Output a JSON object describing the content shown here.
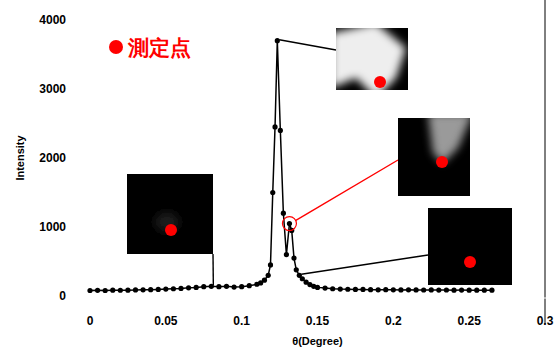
{
  "chart_data": {
    "type": "line",
    "x_label": "θ(Degree)",
    "y_label": "Intensity",
    "annotation": "測定点",
    "color": "#000000",
    "marker": "circle",
    "line_style": "solid",
    "grid": false,
    "x": [
      0,
      0.005,
      0.01,
      0.015,
      0.02,
      0.025,
      0.03,
      0.035,
      0.04,
      0.045,
      0.05,
      0.055,
      0.06,
      0.065,
      0.07,
      0.075,
      0.08,
      0.085,
      0.09,
      0.095,
      0.1,
      0.105,
      0.11,
      0.1125,
      0.115,
      0.1175,
      0.119,
      0.1205,
      0.122,
      0.1235,
      0.1255,
      0.1275,
      0.1295,
      0.1315,
      0.133,
      0.1345,
      0.136,
      0.138,
      0.14,
      0.1425,
      0.145,
      0.1475,
      0.15,
      0.155,
      0.16,
      0.165,
      0.17,
      0.175,
      0.18,
      0.185,
      0.19,
      0.195,
      0.2,
      0.205,
      0.21,
      0.215,
      0.22,
      0.225,
      0.23,
      0.235,
      0.24,
      0.245,
      0.25,
      0.255,
      0.26,
      0.265
    ],
    "values": [
      80,
      82,
      80,
      85,
      83,
      85,
      88,
      90,
      92,
      95,
      100,
      105,
      110,
      118,
      125,
      135,
      140,
      135,
      140,
      130,
      135,
      150,
      170,
      190,
      230,
      300,
      450,
      1500,
      2450,
      3700,
      2400,
      1200,
      600,
      1050,
      950,
      550,
      380,
      300,
      250,
      200,
      165,
      140,
      125,
      115,
      105,
      100,
      98,
      95,
      95,
      92,
      90,
      92,
      90,
      88,
      90,
      88,
      87,
      88,
      86,
      87,
      85,
      86,
      85,
      85,
      84,
      85
    ],
    "xlim": [
      0,
      0.3
    ],
    "ylim": [
      0,
      4000
    ],
    "xticks": [
      0,
      0.05,
      0.1,
      0.15,
      0.2,
      0.25,
      0.3
    ],
    "yticks": [
      0,
      1000,
      2000,
      3000,
      4000
    ],
    "insets": [
      {
        "x": 0.08,
        "y": 140
      },
      {
        "x": 0.1235,
        "y": 3700
      },
      {
        "x": 0.1315,
        "y": 1050
      },
      {
        "x": 0.138,
        "y": 300
      }
    ]
  }
}
